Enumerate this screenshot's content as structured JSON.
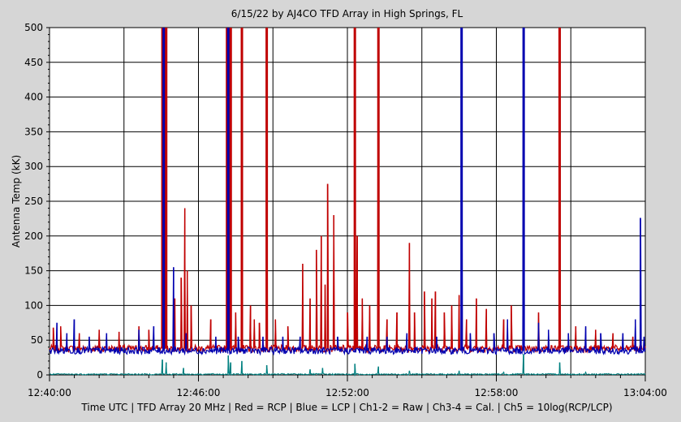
{
  "chart_data": {
    "type": "line",
    "title": "6/15/22  by  AJ4CO TFD Array  in  High Springs, FL",
    "ylabel": "Antenna Temp (kK)",
    "xlabel": "",
    "footer": "Time UTC | TFD Array 20 MHz | Red = RCP | Blue = LCP | Ch1-2 = Raw | Ch3-4 = Cal. | Ch5 = 10log(RCP/LCP)",
    "x_unit": "minutes after 12:40:00 UTC",
    "xlim": [
      0,
      24
    ],
    "ylim": [
      0,
      500
    ],
    "x_ticks": [
      {
        "value": 0,
        "label": "12:40:00"
      },
      {
        "value": 6,
        "label": "12:46:00"
      },
      {
        "value": 12,
        "label": "12:52:00"
      },
      {
        "value": 18,
        "label": "12:58:00"
      },
      {
        "value": 24,
        "label": "13:04:00"
      }
    ],
    "y_ticks": [
      0,
      50,
      100,
      150,
      200,
      250,
      300,
      350,
      400,
      450,
      500
    ],
    "grid": true,
    "colors": {
      "rcp": "#c00000",
      "lcp": "#0000b0",
      "ratio": "#008080",
      "grid": "#000000",
      "plot_bg": "#ffffff"
    },
    "series": [
      {
        "name": "Red = RCP",
        "baseline": 38,
        "peaks": [
          [
            0.15,
            68
          ],
          [
            0.45,
            70
          ],
          [
            1.2,
            60
          ],
          [
            2.0,
            65
          ],
          [
            2.8,
            62
          ],
          [
            3.6,
            70
          ],
          [
            4.0,
            65
          ],
          [
            4.55,
            500
          ],
          [
            4.62,
            500
          ],
          [
            4.7,
            500
          ],
          [
            5.05,
            110
          ],
          [
            5.3,
            140
          ],
          [
            5.45,
            240
          ],
          [
            5.55,
            150
          ],
          [
            5.7,
            100
          ],
          [
            6.5,
            80
          ],
          [
            7.15,
            500
          ],
          [
            7.22,
            500
          ],
          [
            7.3,
            500
          ],
          [
            7.5,
            90
          ],
          [
            7.75,
            500
          ],
          [
            8.1,
            100
          ],
          [
            8.25,
            80
          ],
          [
            8.45,
            75
          ],
          [
            8.75,
            500
          ],
          [
            9.1,
            80
          ],
          [
            9.6,
            70
          ],
          [
            10.2,
            160
          ],
          [
            10.5,
            110
          ],
          [
            10.75,
            180
          ],
          [
            10.95,
            200
          ],
          [
            11.1,
            130
          ],
          [
            11.2,
            275
          ],
          [
            11.45,
            230
          ],
          [
            12.0,
            90
          ],
          [
            12.3,
            500
          ],
          [
            12.4,
            200
          ],
          [
            12.6,
            110
          ],
          [
            12.9,
            100
          ],
          [
            13.25,
            500
          ],
          [
            13.6,
            80
          ],
          [
            14.0,
            90
          ],
          [
            14.5,
            190
          ],
          [
            14.7,
            90
          ],
          [
            15.1,
            120
          ],
          [
            15.4,
            110
          ],
          [
            15.55,
            120
          ],
          [
            15.9,
            90
          ],
          [
            16.2,
            100
          ],
          [
            16.5,
            115
          ],
          [
            16.8,
            80
          ],
          [
            17.2,
            110
          ],
          [
            17.6,
            95
          ],
          [
            18.3,
            80
          ],
          [
            18.6,
            100
          ],
          [
            19.7,
            90
          ],
          [
            20.55,
            500
          ],
          [
            21.2,
            70
          ],
          [
            22.0,
            65
          ],
          [
            22.7,
            60
          ],
          [
            23.5,
            55
          ]
        ]
      },
      {
        "name": "Blue = LCP",
        "baseline": 35,
        "peaks": [
          [
            0.3,
            75
          ],
          [
            0.7,
            60
          ],
          [
            1.0,
            80
          ],
          [
            1.6,
            55
          ],
          [
            2.3,
            60
          ],
          [
            3.6,
            65
          ],
          [
            4.2,
            70
          ],
          [
            4.6,
            500
          ],
          [
            5.0,
            155
          ],
          [
            5.5,
            60
          ],
          [
            6.7,
            55
          ],
          [
            7.2,
            500
          ],
          [
            7.6,
            55
          ],
          [
            8.6,
            55
          ],
          [
            9.4,
            55
          ],
          [
            10.1,
            55
          ],
          [
            11.6,
            55
          ],
          [
            12.8,
            55
          ],
          [
            13.6,
            55
          ],
          [
            14.4,
            60
          ],
          [
            15.6,
            55
          ],
          [
            16.6,
            500
          ],
          [
            16.95,
            60
          ],
          [
            17.9,
            60
          ],
          [
            18.45,
            80
          ],
          [
            19.1,
            500
          ],
          [
            19.7,
            75
          ],
          [
            20.1,
            65
          ],
          [
            20.9,
            60
          ],
          [
            21.6,
            70
          ],
          [
            22.2,
            60
          ],
          [
            23.1,
            60
          ],
          [
            23.6,
            80
          ],
          [
            23.8,
            226
          ],
          [
            23.95,
            55
          ]
        ]
      },
      {
        "name": "Ch5 = 10log(RCP/LCP)",
        "baseline": 2,
        "peaks": [
          [
            4.55,
            22
          ],
          [
            4.7,
            18
          ],
          [
            5.4,
            10
          ],
          [
            7.2,
            28
          ],
          [
            7.3,
            18
          ],
          [
            7.75,
            20
          ],
          [
            8.75,
            14
          ],
          [
            10.5,
            8
          ],
          [
            11.0,
            10
          ],
          [
            12.3,
            16
          ],
          [
            13.25,
            12
          ],
          [
            14.5,
            6
          ],
          [
            16.5,
            6
          ],
          [
            18.3,
            4
          ],
          [
            19.1,
            30
          ],
          [
            20.55,
            18
          ],
          [
            21.6,
            4
          ]
        ]
      }
    ]
  }
}
